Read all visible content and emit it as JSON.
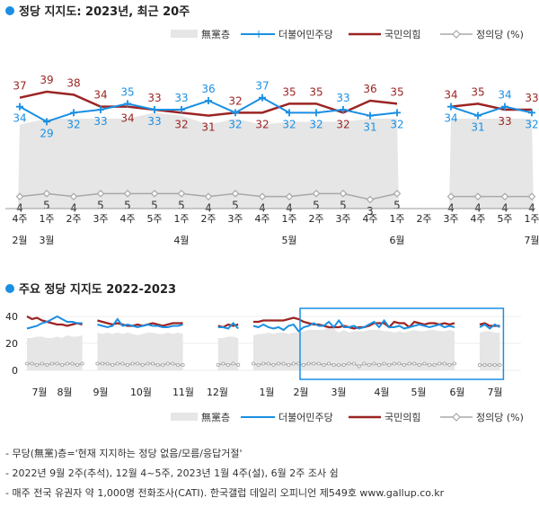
{
  "colors": {
    "dem": "#1a8fe3",
    "ppp": "#9b2423",
    "jus": "#a8a8a8",
    "none": "#e6e6e6",
    "accent": "#1a8fe3"
  },
  "chart_data": [
    {
      "type": "line",
      "title": "정당 지지도: 2023년, 최근 20주",
      "legend": [
        "無黨층",
        "더불어민주당",
        "국민의힘",
        "정의당 (%)"
      ],
      "week_labels": [
        "4주",
        "1주",
        "2주",
        "3주",
        "4주",
        "5주",
        "1주",
        "2주",
        "3주",
        "4주",
        "1주",
        "2주",
        "3주",
        "4주",
        "1주",
        "2주",
        "3주",
        "4주",
        "5주",
        "1주"
      ],
      "month_labels": [
        {
          "text": "2월",
          "at": 0
        },
        {
          "text": "3월",
          "at": 1
        },
        {
          "text": "4월",
          "at": 6
        },
        {
          "text": "5월",
          "at": 10
        },
        {
          "text": "6월",
          "at": 14
        },
        {
          "text": "7월",
          "at": 19
        }
      ],
      "ylim": [
        0,
        45
      ],
      "segments": [
        [
          0,
          14
        ],
        [
          16,
          19
        ]
      ],
      "series": [
        {
          "name": "국민의힘",
          "values": [
            37,
            39,
            38,
            34,
            34,
            33,
            32,
            31,
            32,
            32,
            35,
            35,
            32,
            36,
            35,
            null,
            34,
            35,
            33,
            33
          ]
        },
        {
          "name": "더불어민주당",
          "values": [
            34,
            29,
            32,
            33,
            35,
            33,
            33,
            36,
            32,
            37,
            32,
            32,
            33,
            31,
            32,
            null,
            34,
            31,
            34,
            32
          ]
        },
        {
          "name": "정의당",
          "values": [
            4,
            5,
            4,
            5,
            5,
            5,
            5,
            4,
            5,
            4,
            4,
            5,
            5,
            3,
            5,
            null,
            4,
            4,
            4,
            4
          ]
        },
        {
          "name": "無黨층",
          "values": [
            28,
            30,
            30,
            30,
            30,
            32,
            31,
            28,
            30,
            28,
            29,
            29,
            29,
            30,
            30,
            null,
            30,
            30,
            30,
            30
          ]
        }
      ]
    },
    {
      "type": "line",
      "title": "주요 정당 지지도 2022-2023",
      "legend": [
        "無黨층",
        "더불어민주당",
        "국민의힘",
        "정의당 (%)"
      ],
      "month_labels": [
        "7월",
        "8월",
        "9월",
        "10월",
        "11월",
        "12월",
        "1월",
        "2월",
        "3월",
        "4월",
        "5월",
        "6월",
        "7월"
      ],
      "y_ticks": [
        0,
        20,
        40
      ],
      "ylim": [
        0,
        45
      ],
      "segments": [
        [
          0,
          11
        ],
        [
          14,
          31
        ],
        [
          38,
          42
        ],
        [
          45,
          85
        ],
        [
          90,
          94
        ]
      ],
      "series": [
        {
          "name": "국민의힘",
          "values": [
            40,
            38,
            39,
            37,
            36,
            35,
            34,
            34,
            33,
            34,
            35,
            34,
            null,
            null,
            37,
            36,
            35,
            34,
            35,
            34,
            33,
            33,
            34,
            33,
            34,
            35,
            34,
            33,
            34,
            35,
            35,
            35,
            null,
            null,
            null,
            null,
            null,
            null,
            33,
            32,
            34,
            33,
            34,
            null,
            null,
            36,
            36,
            37,
            37,
            37,
            37,
            37,
            38,
            39,
            38,
            36,
            35,
            34,
            34,
            33,
            32,
            32,
            32,
            33,
            32,
            31,
            32,
            32,
            33,
            35,
            35,
            35,
            32,
            36,
            35,
            35,
            32,
            36,
            35,
            34,
            35,
            35,
            34,
            35,
            34,
            35,
            null,
            null,
            null,
            null,
            34,
            35,
            33,
            33,
            33
          ]
        },
        {
          "name": "더불어민주당",
          "values": [
            31,
            32,
            33,
            35,
            36,
            38,
            40,
            38,
            36,
            36,
            35,
            35,
            null,
            null,
            34,
            33,
            32,
            33,
            38,
            33,
            34,
            33,
            32,
            33,
            34,
            33,
            33,
            32,
            32,
            33,
            33,
            34,
            null,
            null,
            null,
            null,
            null,
            null,
            32,
            32,
            31,
            35,
            31,
            null,
            null,
            33,
            32,
            34,
            32,
            31,
            32,
            30,
            33,
            34,
            29,
            32,
            33,
            35,
            33,
            33,
            36,
            32,
            37,
            32,
            32,
            33,
            31,
            32,
            34,
            36,
            32,
            37,
            32,
            32,
            33,
            31,
            32,
            33,
            34,
            33,
            32,
            33,
            34,
            32,
            33,
            32,
            null,
            null,
            null,
            null,
            32,
            34,
            31,
            34,
            32
          ]
        },
        {
          "name": "정의당",
          "values": [
            5,
            5,
            4,
            5,
            4,
            5,
            5,
            4,
            5,
            5,
            4,
            5,
            null,
            null,
            5,
            5,
            5,
            4,
            5,
            5,
            4,
            5,
            5,
            4,
            5,
            5,
            4,
            4,
            5,
            5,
            4,
            4,
            null,
            null,
            null,
            null,
            null,
            null,
            4,
            5,
            4,
            5,
            4,
            null,
            null,
            5,
            4,
            5,
            5,
            4,
            5,
            5,
            4,
            5,
            5,
            4,
            5,
            5,
            5,
            4,
            5,
            4,
            4,
            4,
            5,
            5,
            3,
            5,
            4,
            5,
            4,
            5,
            4,
            5,
            5,
            4,
            5,
            5,
            4,
            5,
            4,
            4,
            5,
            5,
            4,
            5,
            null,
            null,
            null,
            null,
            4,
            4,
            4,
            4,
            4
          ]
        },
        {
          "name": "無黨층",
          "values": [
            24,
            24,
            25,
            25,
            24,
            24,
            25,
            24,
            26,
            25,
            25,
            26,
            null,
            null,
            28,
            27,
            28,
            27,
            28,
            27,
            28,
            27,
            26,
            27,
            28,
            28,
            27,
            27,
            28,
            27,
            28,
            27,
            null,
            null,
            null,
            null,
            null,
            null,
            24,
            24,
            25,
            25,
            24,
            null,
            null,
            26,
            27,
            27,
            28,
            27,
            28,
            28,
            27,
            28,
            28,
            29,
            30,
            30,
            30,
            30,
            32,
            31,
            28,
            30,
            28,
            29,
            29,
            29,
            30,
            30,
            30,
            29,
            29,
            28,
            29,
            28,
            29,
            30,
            29,
            29,
            30,
            30,
            29,
            29,
            30,
            29,
            null,
            null,
            null,
            null,
            28,
            29,
            29,
            28,
            28
          ]
        }
      ],
      "highlight": {
        "from": 55,
        "to": 94
      }
    }
  ],
  "footnotes": [
    "- 무당(無黨)층='현재 지지하는 정당 없음/모름/응답거절'",
    "- 2022년 9월 2주(추석), 12월 4~5주, 2023년 1월 4주(설), 6월 2주 조사 쉼",
    "- 매주 전국 유권자 약 1,000명 전화조사(CATI). 한국갤럽 데일리 오피니언 제549호 www.gallup.co.kr"
  ]
}
